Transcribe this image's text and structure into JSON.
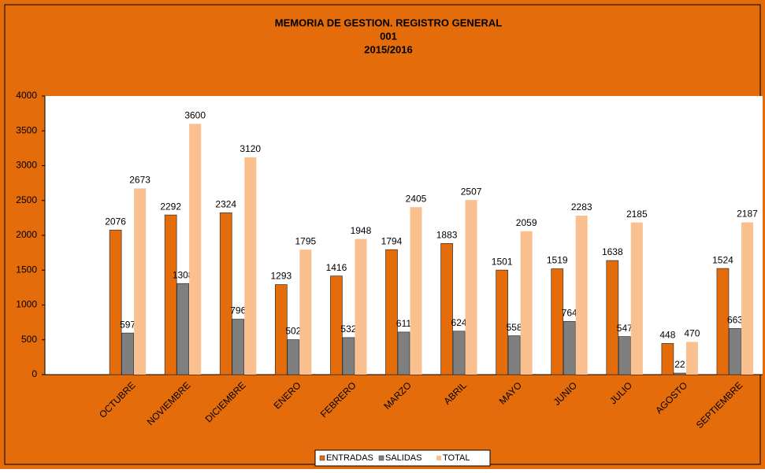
{
  "chart_data": {
    "type": "bar",
    "title": "MEMORIA DE GESTION. REGISTRO GENERAL",
    "subtitle": "001",
    "period": "2015/2016",
    "categories": [
      null,
      "OCTUBRE",
      "NOVIEMBRE",
      "DICIEMBRE",
      "ENERO",
      "FEBRERO",
      "MARZO",
      "ABRIL",
      "MAYO",
      "JUNIO",
      "JULIO",
      "AGOSTO",
      "SEPTIEMBRE"
    ],
    "series": [
      {
        "name": "ENTRADAS",
        "color": "#e46c0a",
        "values": [
          null,
          2076,
          2292,
          2324,
          1293,
          1416,
          1794,
          1883,
          1501,
          1519,
          1638,
          448,
          1524
        ]
      },
      {
        "name": "SALIDAS",
        "color": "#7f7f7f",
        "values": [
          null,
          597,
          1308,
          796,
          502,
          532,
          611,
          624,
          558,
          764,
          547,
          22,
          663
        ]
      },
      {
        "name": "TOTAL",
        "color": "#fac090",
        "values": [
          null,
          2673,
          3600,
          3120,
          1795,
          1948,
          2405,
          2507,
          2059,
          2283,
          2185,
          470,
          2187
        ]
      }
    ],
    "ylim": [
      0,
      4000
    ],
    "yticks": [
      0,
      500,
      1000,
      1500,
      2000,
      2500,
      3000,
      3500,
      4000
    ],
    "grid": false,
    "legend": "bottom"
  }
}
